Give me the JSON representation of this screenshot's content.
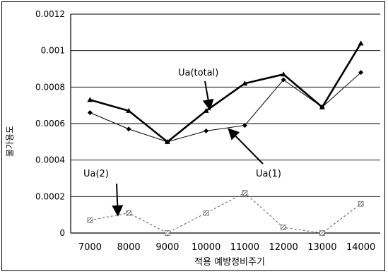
{
  "chart_data": {
    "type": "line",
    "title": "",
    "xlabel": "적용 예방정비주기",
    "ylabel": "불가용도",
    "x": [
      7000,
      8000,
      9000,
      10000,
      11000,
      12000,
      13000,
      14000
    ],
    "x_tick_labels": [
      "7000",
      "8000",
      "9000",
      "10000",
      "11000",
      "12000",
      "13000",
      "14000"
    ],
    "ylim": [
      0,
      0.0012
    ],
    "y_ticks": [
      0,
      0.0002,
      0.0004,
      0.0006,
      0.0008,
      0.001,
      0.0012
    ],
    "y_tick_labels": [
      "0",
      "0.0002",
      "0.0004",
      "0.0006",
      "0.0008",
      "0.001",
      "0.0012"
    ],
    "grid": true,
    "legend": "none",
    "series": [
      {
        "name": "Ua(total)",
        "values": [
          0.00073,
          0.00067,
          0.0005,
          0.00067,
          0.00082,
          0.00087,
          0.00069,
          0.00104
        ],
        "color": "#000000",
        "marker": "triangle",
        "style": "solid-thick"
      },
      {
        "name": "Ua(1)",
        "values": [
          0.00066,
          0.00057,
          0.0005,
          0.00056,
          0.00059,
          0.00084,
          0.00069,
          0.00088
        ],
        "color": "#000000",
        "marker": "diamond",
        "style": "solid-thin"
      },
      {
        "name": "Ua(2)",
        "values": [
          7e-05,
          0.00011,
          0.0,
          0.00011,
          0.00022,
          3e-05,
          0.0,
          0.00016
        ],
        "color": "#555555",
        "marker": "hatched-square",
        "style": "dashed"
      }
    ],
    "annotations": [
      {
        "text": "Ua(total)",
        "points_to_series": 0
      },
      {
        "text": "Ua(1)",
        "points_to_series": 1
      },
      {
        "text": "Ua(2)",
        "points_to_series": 2
      }
    ]
  }
}
